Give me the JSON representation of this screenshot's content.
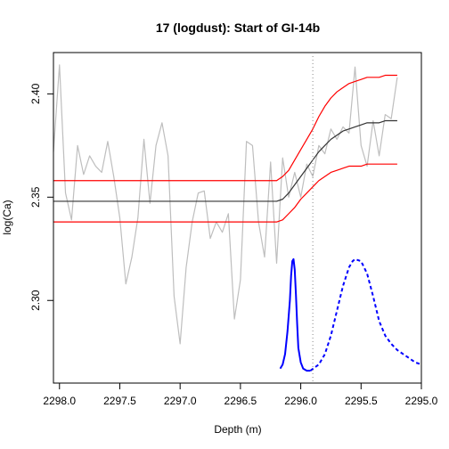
{
  "chart_data": {
    "type": "line",
    "title": "17 (logdust): Start of GI-14b",
    "xlabel": "Depth (m)",
    "ylabel": "log(Ca)",
    "xlim": [
      2298.05,
      2295.0
    ],
    "ylim": [
      2.26,
      2.42
    ],
    "x_ticks": [
      2298.0,
      2297.5,
      2297.0,
      2296.5,
      2296.0,
      2295.5,
      2295.0
    ],
    "x_tick_labels": [
      "2298.0",
      "2297.5",
      "2297.0",
      "2296.5",
      "2296.0",
      "2295.5",
      "2295.0"
    ],
    "y_ticks": [
      2.3,
      2.35,
      2.4
    ],
    "y_tick_labels": [
      "2.30",
      "2.35",
      "2.40"
    ],
    "transition_depth": 2295.9,
    "colors": {
      "observations": "#bebebe",
      "fit": "#333333",
      "bounds": "#ff0000",
      "density_solid": "#0000ff",
      "density_dashed": "#0000ff",
      "marker": "#888888"
    },
    "series": [
      {
        "style": "solid",
        "color": "#bebebe",
        "x": [
          2298.05,
          2298.0,
          2297.95,
          2297.9,
          2297.85,
          2297.8,
          2297.75,
          2297.7,
          2297.65,
          2297.6,
          2297.55,
          2297.5,
          2297.45,
          2297.4,
          2297.35,
          2297.3,
          2297.25,
          2297.2,
          2297.15,
          2297.1,
          2297.05,
          2297.0,
          2296.95,
          2296.9,
          2296.85,
          2296.8,
          2296.75,
          2296.7,
          2296.65,
          2296.6,
          2296.55,
          2296.5,
          2296.45,
          2296.4,
          2296.35,
          2296.3,
          2296.25,
          2296.2,
          2296.15,
          2296.1,
          2296.05,
          2296.0,
          2295.95,
          2295.9,
          2295.85,
          2295.8,
          2295.75,
          2295.7,
          2295.65,
          2295.6,
          2295.55,
          2295.5,
          2295.45,
          2295.4,
          2295.35,
          2295.3,
          2295.25,
          2295.2
        ],
        "y": [
          2.372,
          2.414,
          2.352,
          2.339,
          2.375,
          2.361,
          2.37,
          2.365,
          2.362,
          2.377,
          2.36,
          2.34,
          2.308,
          2.321,
          2.34,
          2.378,
          2.347,
          2.375,
          2.386,
          2.37,
          2.302,
          2.279,
          2.316,
          2.338,
          2.352,
          2.353,
          2.33,
          2.338,
          2.333,
          2.342,
          2.291,
          2.31,
          2.377,
          2.375,
          2.338,
          2.321,
          2.367,
          2.318,
          2.369,
          2.35,
          2.362,
          2.35,
          2.366,
          2.36,
          2.375,
          2.371,
          2.383,
          2.378,
          2.384,
          2.381,
          2.413,
          2.375,
          2.365,
          2.387,
          2.37,
          2.39,
          2.388,
          2.408
        ]
      },
      {
        "style": "solid",
        "color": "#333333",
        "x": [
          2298.05,
          2296.2,
          2296.15,
          2296.1,
          2296.05,
          2296.0,
          2295.95,
          2295.9,
          2295.85,
          2295.8,
          2295.75,
          2295.7,
          2295.65,
          2295.6,
          2295.55,
          2295.5,
          2295.45,
          2295.4,
          2295.35,
          2295.3,
          2295.25,
          2295.2
        ],
        "y": [
          2.348,
          2.348,
          2.349,
          2.352,
          2.356,
          2.36,
          2.364,
          2.368,
          2.372,
          2.375,
          2.378,
          2.38,
          2.382,
          2.383,
          2.384,
          2.385,
          2.386,
          2.386,
          2.386,
          2.387,
          2.387,
          2.387
        ]
      },
      {
        "style": "solid",
        "color": "#ff0000",
        "x": [
          2298.05,
          2296.2,
          2296.15,
          2296.1,
          2296.05,
          2296.0,
          2295.95,
          2295.9,
          2295.85,
          2295.8,
          2295.75,
          2295.7,
          2295.65,
          2295.6,
          2295.55,
          2295.5,
          2295.45,
          2295.4,
          2295.35,
          2295.3,
          2295.25,
          2295.2
        ],
        "y": [
          2.358,
          2.358,
          2.36,
          2.363,
          2.368,
          2.373,
          2.378,
          2.383,
          2.389,
          2.394,
          2.398,
          2.401,
          2.403,
          2.405,
          2.406,
          2.407,
          2.408,
          2.408,
          2.408,
          2.409,
          2.409,
          2.409
        ]
      },
      {
        "style": "solid",
        "color": "#ff0000",
        "x": [
          2298.05,
          2296.2,
          2296.15,
          2296.1,
          2296.05,
          2296.0,
          2295.95,
          2295.9,
          2295.85,
          2295.8,
          2295.75,
          2295.7,
          2295.65,
          2295.6,
          2295.55,
          2295.5,
          2295.45,
          2295.4,
          2295.35,
          2295.3,
          2295.25,
          2295.2
        ],
        "y": [
          2.338,
          2.338,
          2.339,
          2.342,
          2.345,
          2.349,
          2.352,
          2.355,
          2.358,
          2.36,
          2.362,
          2.363,
          2.364,
          2.365,
          2.365,
          2.365,
          2.366,
          2.366,
          2.366,
          2.366,
          2.366,
          2.366
        ]
      },
      {
        "style": "solid",
        "color": "#0000ff",
        "x": [
          2296.17,
          2296.15,
          2296.13,
          2296.11,
          2296.09,
          2296.08,
          2296.07,
          2296.06,
          2296.05,
          2296.04,
          2296.03,
          2296.02,
          2296.0,
          2295.98,
          2295.95,
          2295.92
        ],
        "y": [
          2.267,
          2.269,
          2.274,
          2.285,
          2.3,
          2.312,
          2.319,
          2.32,
          2.315,
          2.303,
          2.289,
          2.277,
          2.27,
          2.267,
          2.266,
          2.266
        ]
      },
      {
        "style": "dashed",
        "color": "#0000ff",
        "x": [
          2295.92,
          2295.85,
          2295.8,
          2295.75,
          2295.7,
          2295.65,
          2295.6,
          2295.57,
          2295.55,
          2295.5,
          2295.45,
          2295.4,
          2295.35,
          2295.3,
          2295.25,
          2295.2,
          2295.15,
          2295.1,
          2295.05,
          2295.0
        ],
        "y": [
          2.266,
          2.269,
          2.274,
          2.283,
          2.295,
          2.307,
          2.316,
          2.319,
          2.32,
          2.319,
          2.313,
          2.302,
          2.29,
          2.283,
          2.279,
          2.276,
          2.274,
          2.272,
          2.27,
          2.269
        ]
      }
    ]
  }
}
